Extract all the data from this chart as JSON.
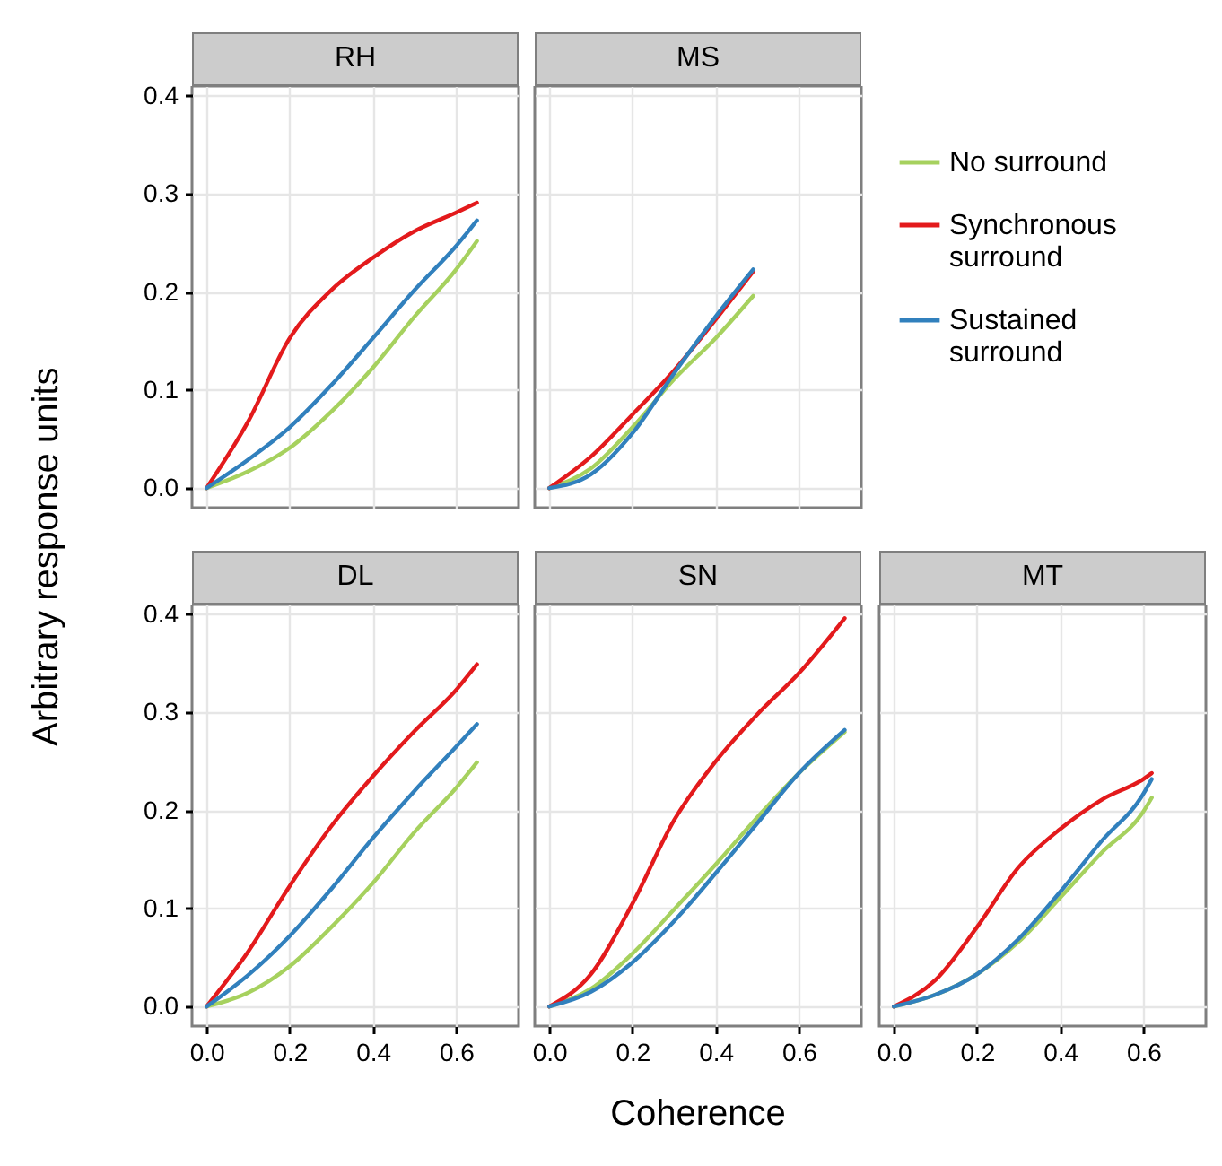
{
  "chart_data": [
    {
      "type": "line",
      "title": "RH",
      "ylabel": "Arbitrary response units",
      "x": [
        0,
        0.1,
        0.2,
        0.3,
        0.4,
        0.5,
        0.6,
        0.65
      ],
      "xlim": [
        -0.035,
        0.75
      ],
      "ylim": [
        -0.02,
        0.41
      ],
      "xticks": [
        0,
        0.2,
        0.4,
        0.6
      ],
      "yticks": [
        {
          "value": 0,
          "label": "0.0"
        },
        {
          "value": 0.1,
          "label": "0.1"
        },
        {
          "value": 0.2,
          "label": "0.2"
        },
        {
          "value": 0.3,
          "label": "0.3"
        },
        {
          "value": 0.4,
          "label": "0.4"
        }
      ],
      "grid": true,
      "tick_labels": "y",
      "series": [
        {
          "color": "#a6d15e",
          "values": [
            0,
            0.017,
            0.041,
            0.078,
            0.123,
            0.175,
            0.223,
            0.252
          ]
        },
        {
          "color": "#e31a1c",
          "values": [
            0,
            0.068,
            0.153,
            0.202,
            0.235,
            0.262,
            0.281,
            0.291
          ]
        },
        {
          "color": "#3180bd",
          "values": [
            0,
            0.029,
            0.062,
            0.105,
            0.153,
            0.202,
            0.247,
            0.273
          ]
        }
      ]
    },
    {
      "type": "line",
      "title": "MS",
      "x": [
        0,
        0.1,
        0.2,
        0.3,
        0.4,
        0.49
      ],
      "xlim": [
        -0.035,
        0.75
      ],
      "ylim": [
        -0.02,
        0.41
      ],
      "xticks": [
        0,
        0.2,
        0.4,
        0.6
      ],
      "yticks": [
        0,
        0.1,
        0.2,
        0.3,
        0.4
      ],
      "grid": true,
      "tick_labels": false,
      "legend": "right",
      "series": [
        {
          "name": "No surround",
          "color": "#a6d15e",
          "values": [
            0,
            0.02,
            0.062,
            0.111,
            0.153,
            0.196
          ]
        },
        {
          "name": "Synchronous surround",
          "color": "#e31a1c",
          "values": [
            0,
            0.032,
            0.075,
            0.12,
            0.172,
            0.221
          ]
        },
        {
          "name": "Sustained surround",
          "color": "#3180bd",
          "values": [
            0,
            0.014,
            0.056,
            0.117,
            0.175,
            0.223
          ]
        }
      ]
    },
    {
      "type": "line",
      "title": "DL",
      "x": [
        0,
        0.1,
        0.2,
        0.3,
        0.4,
        0.5,
        0.6,
        0.65
      ],
      "xlim": [
        -0.035,
        0.75
      ],
      "ylim": [
        -0.02,
        0.41
      ],
      "xticks": [
        {
          "value": 0,
          "label": "0.0"
        },
        {
          "value": 0.2,
          "label": "0.2"
        },
        {
          "value": 0.4,
          "label": "0.4"
        },
        {
          "value": 0.6,
          "label": "0.6"
        }
      ],
      "yticks": [
        {
          "value": 0,
          "label": "0.0"
        },
        {
          "value": 0.1,
          "label": "0.1"
        },
        {
          "value": 0.2,
          "label": "0.2"
        },
        {
          "value": 0.3,
          "label": "0.3"
        },
        {
          "value": 0.4,
          "label": "0.4"
        }
      ],
      "grid": true,
      "series": [
        {
          "color": "#a6d15e",
          "values": [
            0,
            0.014,
            0.041,
            0.081,
            0.126,
            0.178,
            0.223,
            0.249
          ]
        },
        {
          "color": "#e31a1c",
          "values": [
            0,
            0.056,
            0.123,
            0.184,
            0.235,
            0.281,
            0.323,
            0.349
          ]
        },
        {
          "color": "#3180bd",
          "values": [
            0,
            0.032,
            0.072,
            0.12,
            0.172,
            0.22,
            0.265,
            0.288
          ]
        }
      ]
    },
    {
      "type": "line",
      "title": "SN",
      "xlabel": "Coherence",
      "x": [
        0,
        0.1,
        0.2,
        0.3,
        0.4,
        0.5,
        0.6,
        0.71
      ],
      "xlim": [
        -0.035,
        0.75
      ],
      "ylim": [
        -0.02,
        0.41
      ],
      "xticks": [
        {
          "value": 0,
          "label": "0.0"
        },
        {
          "value": 0.2,
          "label": "0.2"
        },
        {
          "value": 0.4,
          "label": "0.4"
        },
        {
          "value": 0.6,
          "label": "0.6"
        }
      ],
      "yticks": [
        0,
        0.1,
        0.2,
        0.3,
        0.4
      ],
      "grid": true,
      "tick_labels": "x",
      "series": [
        {
          "color": "#a6d15e",
          "values": [
            0,
            0.018,
            0.054,
            0.099,
            0.145,
            0.193,
            0.238,
            0.28
          ]
        },
        {
          "color": "#e31a1c",
          "values": [
            0,
            0.033,
            0.105,
            0.19,
            0.25,
            0.298,
            0.34,
            0.396
          ]
        },
        {
          "color": "#3180bd",
          "values": [
            0,
            0.015,
            0.045,
            0.087,
            0.136,
            0.187,
            0.238,
            0.282
          ]
        }
      ]
    },
    {
      "type": "line",
      "title": "MT",
      "x": [
        0,
        0.1,
        0.2,
        0.3,
        0.4,
        0.5,
        0.6,
        0.62
      ],
      "xlim": [
        -0.035,
        0.75
      ],
      "ylim": [
        -0.02,
        0.41
      ],
      "xticks": [
        {
          "value": 0,
          "label": "0.0"
        },
        {
          "value": 0.2,
          "label": "0.2"
        },
        {
          "value": 0.4,
          "label": "0.4"
        },
        {
          "value": 0.6,
          "label": "0.6"
        }
      ],
      "yticks": [
        0,
        0.1,
        0.2,
        0.3,
        0.4
      ],
      "grid": true,
      "tick_labels": "x",
      "series": [
        {
          "color": "#a6d15e",
          "values": [
            0,
            0.012,
            0.033,
            0.066,
            0.111,
            0.157,
            0.199,
            0.213
          ]
        },
        {
          "color": "#e31a1c",
          "values": [
            0,
            0.027,
            0.081,
            0.142,
            0.181,
            0.211,
            0.232,
            0.238
          ]
        },
        {
          "color": "#3180bd",
          "values": [
            0,
            0.012,
            0.033,
            0.069,
            0.117,
            0.169,
            0.217,
            0.232
          ]
        }
      ]
    }
  ]
}
